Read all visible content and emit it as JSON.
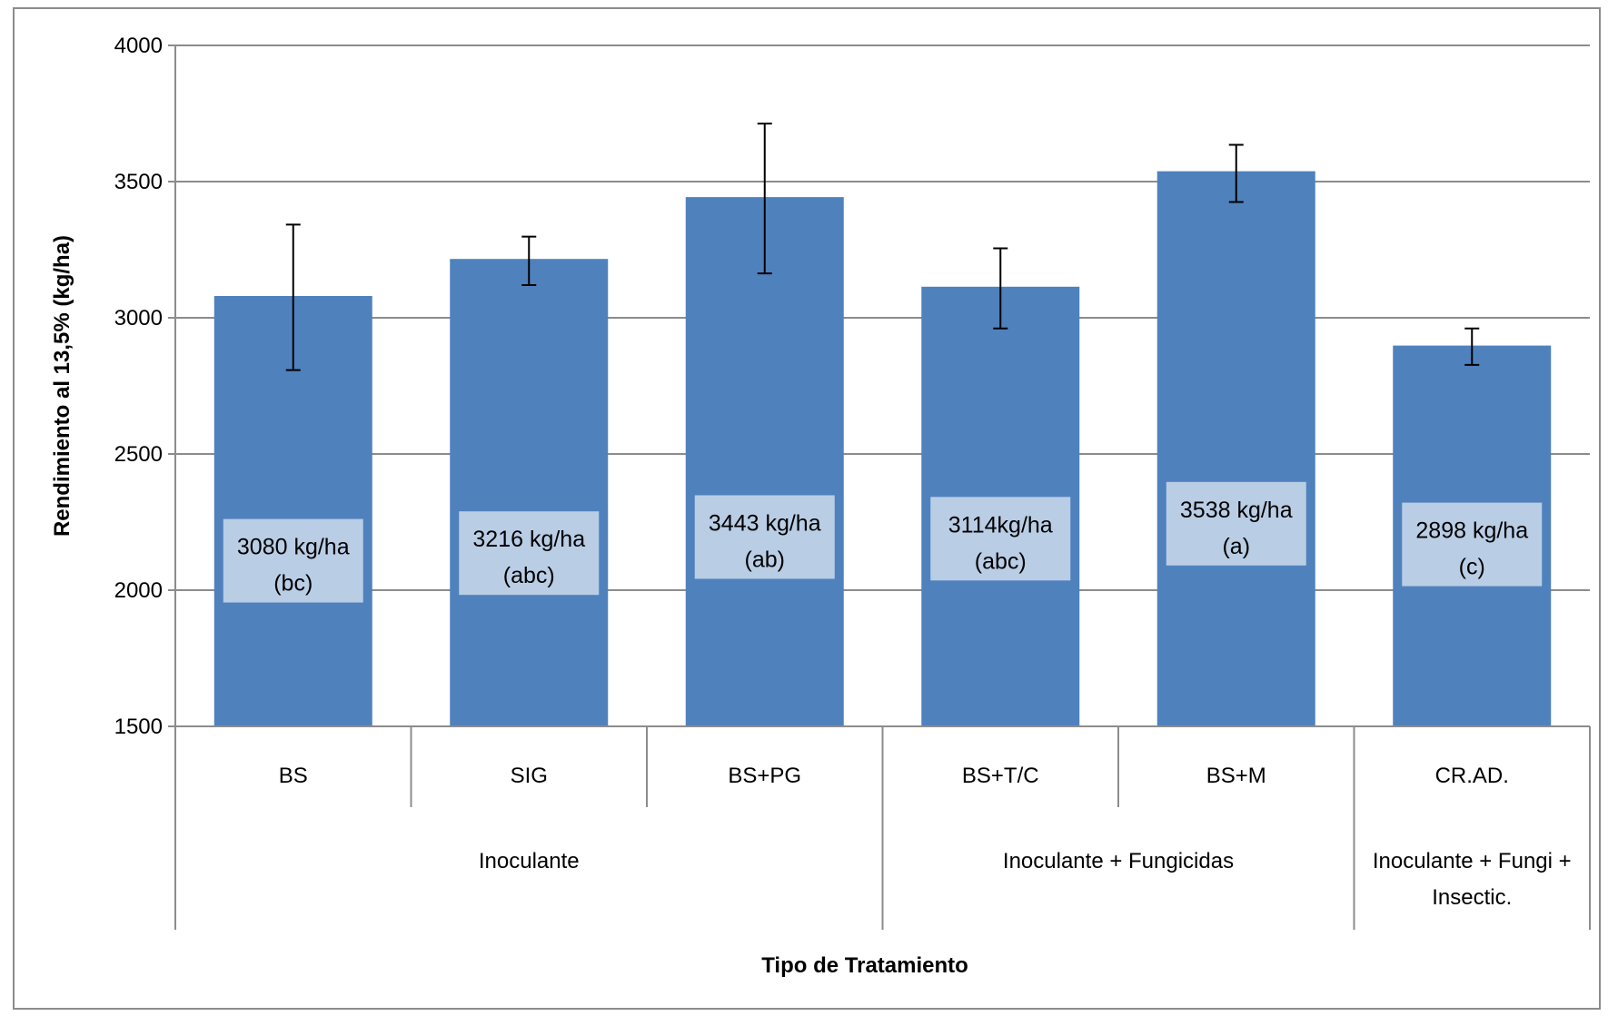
{
  "chart_data": {
    "type": "bar",
    "title": "",
    "xlabel": "Tipo de Tratamiento",
    "ylabel": "Rendimiento al 13,5% (kg/ha)",
    "ylim": [
      1500,
      4000
    ],
    "yticks": [
      1500,
      2000,
      2500,
      3000,
      3500,
      4000
    ],
    "grid": true,
    "legend": "none",
    "bar_color": "#4f81bd",
    "label_box_color": "#b9cde5",
    "categories": [
      "BS",
      "SIG",
      "BS+PG",
      "BS+T/C",
      "BS+M",
      "CR.AD."
    ],
    "values": [
      3080,
      3216,
      3443,
      3114,
      3538,
      2898
    ],
    "error_high": [
      3342,
      3298,
      3713,
      3255,
      3635,
      2961
    ],
    "error_low": [
      2808,
      3120,
      3163,
      2961,
      3425,
      2827
    ],
    "data_labels": [
      {
        "value": "3080 kg/ha",
        "letter": "(bc)"
      },
      {
        "value": "3216 kg/ha",
        "letter": "(abc)"
      },
      {
        "value": "3443 kg/ha",
        "letter": "(ab)"
      },
      {
        "value": "3114kg/ha",
        "letter": "(abc)"
      },
      {
        "value": "3538 kg/ha",
        "letter": "(a)"
      },
      {
        "value": "2898 kg/ha",
        "letter": "(c)"
      }
    ],
    "label_centers": [
      2108,
      2136,
      2195,
      2189,
      2244,
      2168
    ],
    "groups": [
      {
        "lines": [
          "Inoculante"
        ],
        "start": 0,
        "end": 2
      },
      {
        "lines": [
          "Inoculante + Fungicidas"
        ],
        "start": 3,
        "end": 4
      },
      {
        "lines": [
          "Inoculante + Fungi +",
          "Insectic."
        ],
        "start": 5,
        "end": 5
      }
    ]
  }
}
